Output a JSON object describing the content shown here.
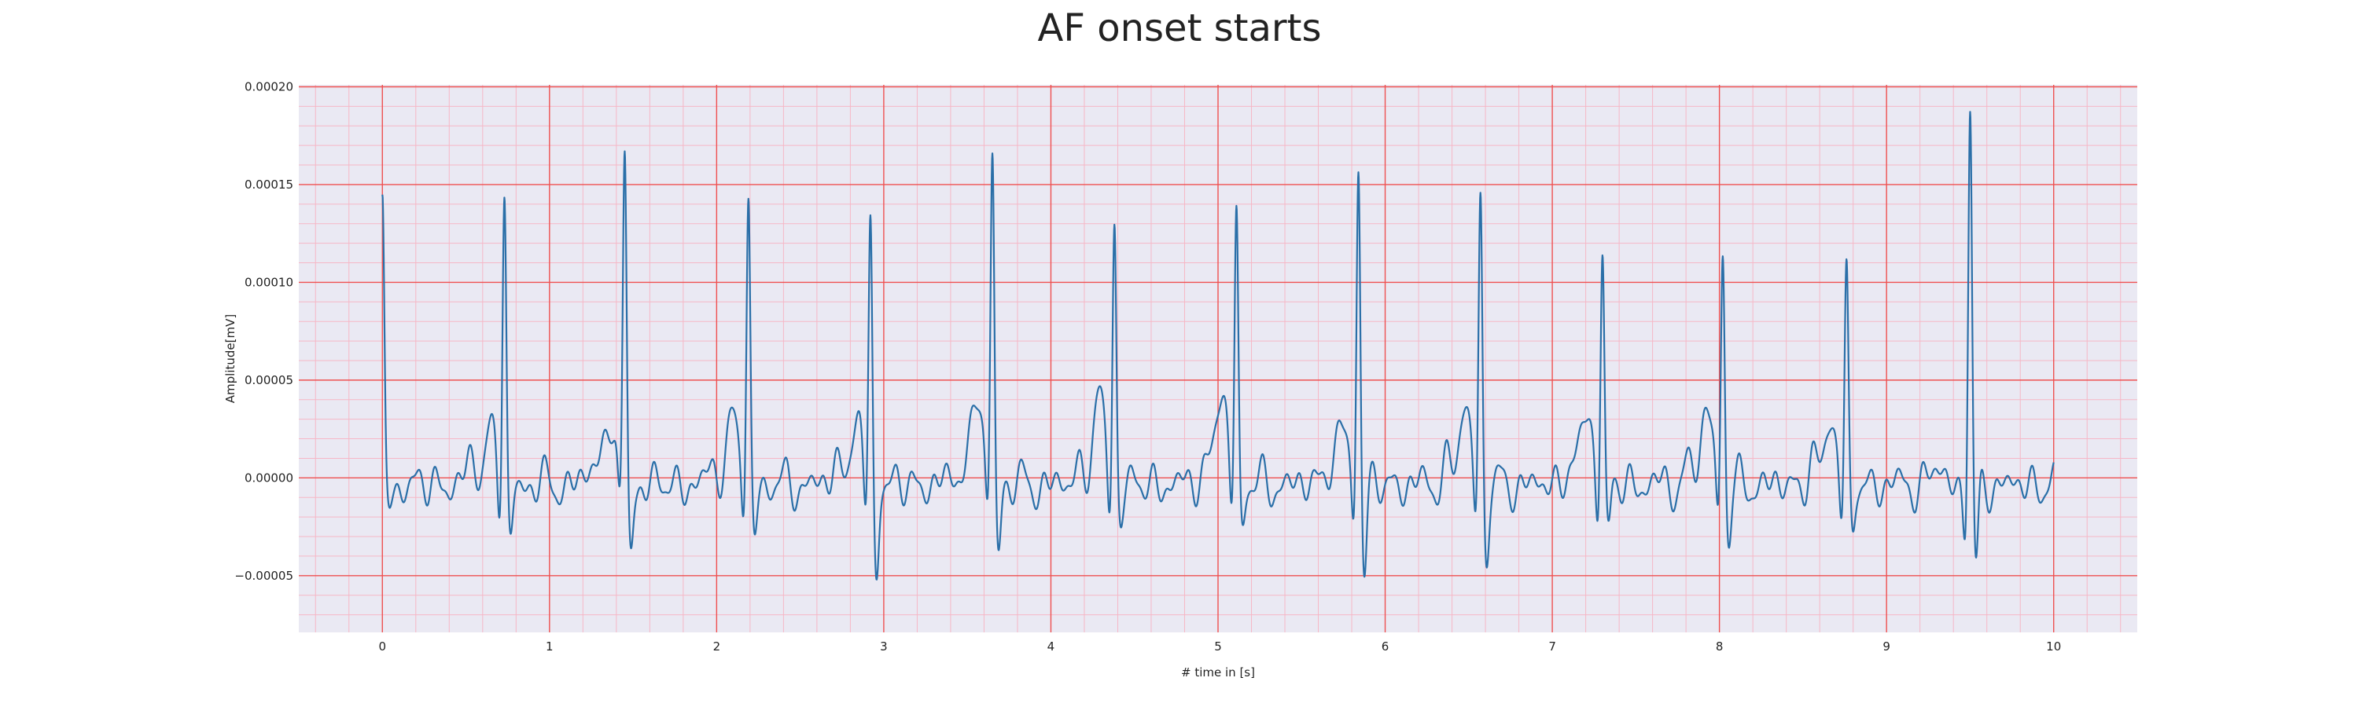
{
  "chart_data": {
    "type": "line",
    "title": "AF onset starts",
    "xlabel": "# time in [s]",
    "ylabel": "Amplitude[mV]",
    "xlim": [
      -0.5,
      10.5
    ],
    "ylim": [
      -7.9e-05,
      0.000201
    ],
    "xticks": [
      0,
      1,
      2,
      3,
      4,
      5,
      6,
      7,
      8,
      9,
      10
    ],
    "xtick_labels": [
      "0",
      "1",
      "2",
      "3",
      "4",
      "5",
      "6",
      "7",
      "8",
      "9",
      "10"
    ],
    "yticks": [
      -5e-05,
      0.0,
      5e-05,
      0.0001,
      0.00015,
      0.0002
    ],
    "ytick_labels": [
      "−0.00005",
      "0.00000",
      "0.00005",
      "0.00010",
      "0.00015",
      "0.00020"
    ],
    "grid": true,
    "minor_grid": true,
    "background_color": "#eae9f3",
    "major_grid_color": "#ef5050",
    "minor_grid_color": "#f6b7c6",
    "line_color": "#2a6fa8",
    "beat_times": [
      0.0,
      0.73,
      1.45,
      2.19,
      2.92,
      3.65,
      4.38,
      5.11,
      5.84,
      6.57,
      7.3,
      8.02,
      8.76,
      9.5
    ],
    "r_peak_amplitudes": [
      0.000138,
      0.00015,
      0.000166,
      0.000143,
      0.000141,
      0.000168,
      0.000135,
      0.000143,
      0.000166,
      0.000149,
      0.00012,
      0.000121,
      0.000108,
      0.000194
    ],
    "s_wave_amplitudes": [
      -3.2e-05,
      -4.8e-05,
      -5.3e-05,
      -4.5e-05,
      -6.5e-05,
      -5.2e-05,
      -3.5e-05,
      -4e-05,
      -6.5e-05,
      -5.7e-05,
      -4.6e-05,
      -4.8e-05,
      -4.7e-05,
      -6.6e-05
    ],
    "t_wave_amplitudes": [
      1.2e-05,
      2.9e-05,
      3.6e-05,
      3.5e-05,
      3.1e-05,
      4.5e-05,
      4.3e-05,
      4.8e-05,
      2.9e-05,
      3.9e-05,
      3.9e-05,
      3.9e-05,
      3.5e-05,
      4.1e-05
    ]
  }
}
